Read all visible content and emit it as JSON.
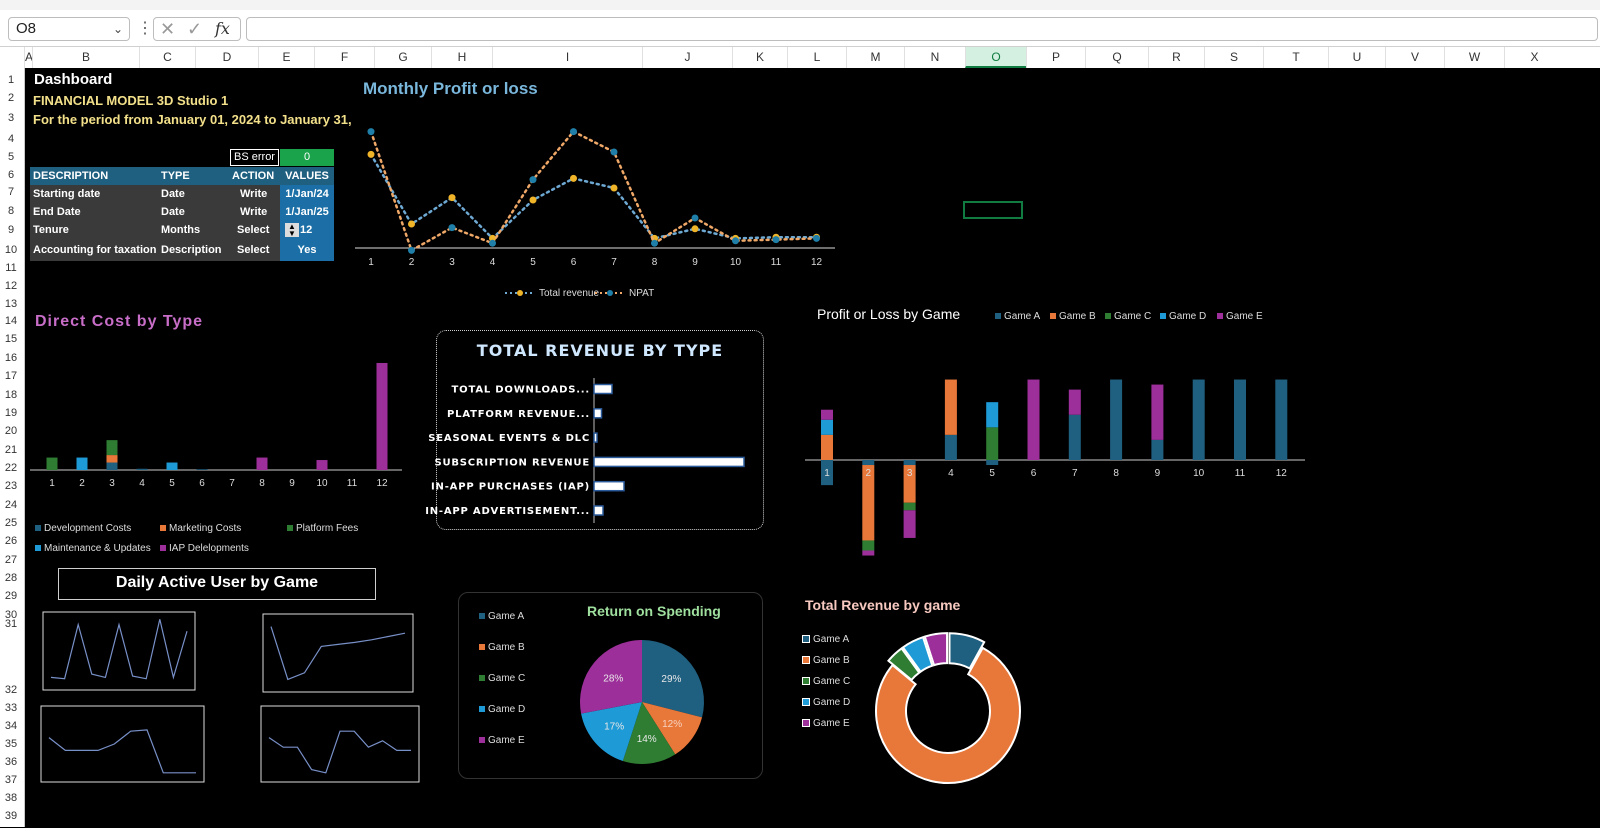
{
  "toolbar": {
    "name_box": "O8",
    "formula": ""
  },
  "columns": [
    "A",
    "B",
    "C",
    "D",
    "E",
    "F",
    "G",
    "H",
    "I",
    "J",
    "K",
    "L",
    "M",
    "N",
    "O",
    "P",
    "Q",
    "R",
    "S",
    "T",
    "U",
    "V",
    "W",
    "X"
  ],
  "selected_column": "O",
  "rows": [
    "1",
    "2",
    "3",
    "4",
    "5",
    "6",
    "7",
    "8",
    "9",
    "10",
    "11",
    "12",
    "13",
    "14",
    "15",
    "16",
    "17",
    "18",
    "19",
    "20",
    "21",
    "22",
    "23",
    "24",
    "25",
    "26",
    "27",
    "28",
    "29",
    "30",
    "31",
    "32",
    "33",
    "34",
    "35",
    "36",
    "37",
    "38",
    "39"
  ],
  "dashboard": {
    "title": "Dashboard",
    "subtitle": "FINANCIAL MODEL 3D Studio 1",
    "period": "For the period from January 01, 2024 to January 31,",
    "bs_error_label": "BS error",
    "bs_error_value": "0",
    "table": {
      "headers": [
        "DESCRIPTION",
        "TYPE",
        "ACTION",
        "VALUES"
      ],
      "rows": [
        [
          "Starting date",
          "Date",
          "Write",
          "1/Jan/24"
        ],
        [
          "End Date",
          "Date",
          "Write",
          "1/Jan/25"
        ],
        [
          "Tenure",
          "Months",
          "Select",
          "12"
        ],
        [
          "Accounting for taxation",
          "Description",
          "Select",
          "Yes"
        ]
      ]
    }
  },
  "colors": {
    "gameA": "#1f5f80",
    "gameB": "#e8773a",
    "gameC": "#2e7d32",
    "gameD": "#1e9ad6",
    "gameE": "#9c2f9a",
    "total_revenue": "#f0b429",
    "npat": "#1f7fa8"
  },
  "chart_data": [
    {
      "type": "line",
      "title": "Monthly Profit or loss",
      "x": [
        1,
        2,
        3,
        4,
        5,
        6,
        7,
        8,
        9,
        10,
        11,
        12
      ],
      "series": [
        {
          "name": "Total revenue",
          "values": [
            78,
            20,
            42,
            8,
            40,
            58,
            50,
            8,
            16,
            8,
            9,
            9
          ]
        },
        {
          "name": "NPAT",
          "values": [
            97,
            -2,
            17,
            4,
            57,
            97,
            80,
            4,
            25,
            6,
            7,
            8
          ]
        }
      ],
      "ylim": [
        -5,
        110
      ],
      "legend": "bottom"
    },
    {
      "type": "bar",
      "title": "Direct Cost by Type",
      "categories": [
        "1",
        "2",
        "3",
        "4",
        "5",
        "6",
        "7",
        "8",
        "9",
        "10",
        "11",
        "12"
      ],
      "series": [
        {
          "name": "Development Costs",
          "values": [
            0,
            0,
            3,
            0.5,
            0,
            0.3,
            0,
            0,
            0,
            0,
            0,
            0
          ]
        },
        {
          "name": "Marketing Costs",
          "values": [
            0,
            0,
            3,
            0,
            0,
            0,
            0,
            0,
            0,
            0,
            0,
            0
          ]
        },
        {
          "name": "Platform Fees",
          "values": [
            5,
            0,
            6,
            0,
            0,
            0,
            0,
            0,
            0,
            0,
            0,
            0
          ]
        },
        {
          "name": "Maintenance & Updates",
          "values": [
            0,
            5,
            0,
            0,
            3,
            0,
            0,
            0,
            0,
            0,
            0,
            0
          ]
        },
        {
          "name": "IAP Delelopments",
          "values": [
            0,
            0,
            0,
            0,
            0,
            0,
            0,
            5,
            0,
            4,
            0,
            43
          ]
        }
      ],
      "ylim": [
        0,
        45
      ],
      "legend": "bottom"
    },
    {
      "type": "bar",
      "title": "TOTAL REVENUE BY TYPE",
      "categories": [
        "TOTAL DOWNLOADS...",
        "PLATFORM REVENUE...",
        "SEASONAL EVENTS & DLC",
        "SUBSCRIPTION REVENUE",
        "IN-APP PURCHASES (IAP)",
        "IN-APP ADVERTISEMENT..."
      ],
      "values": [
        12,
        5,
        1,
        100,
        20,
        6
      ],
      "orientation": "horizontal",
      "ylim": [
        0,
        100
      ]
    },
    {
      "type": "bar",
      "title": "Profit or Loss by Game",
      "categories": [
        "1",
        "2",
        "3",
        "4",
        "5",
        "6",
        "7",
        "8",
        "9",
        "10",
        "11",
        "12"
      ],
      "series": [
        {
          "name": "Game A",
          "values": [
            -10,
            -2,
            -2,
            10,
            -2,
            0,
            18,
            32,
            8,
            32,
            32,
            32
          ]
        },
        {
          "name": "Game B",
          "values": [
            10,
            -30,
            -15,
            22,
            0,
            0,
            0,
            0,
            0,
            0,
            0,
            0
          ]
        },
        {
          "name": "Game C",
          "values": [
            0,
            -4,
            -3,
            0,
            13,
            0,
            0,
            0,
            0,
            0,
            0,
            0
          ]
        },
        {
          "name": "Game D",
          "values": [
            6,
            0,
            0,
            0,
            10,
            0,
            0,
            0,
            0,
            0,
            0,
            0
          ]
        },
        {
          "name": "Game E",
          "values": [
            4,
            -2,
            -11,
            0,
            0,
            32,
            10,
            0,
            22,
            0,
            0,
            0
          ]
        }
      ],
      "ylim": [
        -30,
        35
      ],
      "legend": "top"
    },
    {
      "type": "line",
      "title": "Daily Active User by Game",
      "series": [
        {
          "values": [
            10,
            8,
            90,
            15,
            10,
            90,
            12,
            8,
            98,
            10,
            80
          ]
        },
        {
          "values": [
            90,
            10,
            20,
            60,
            63,
            66,
            70,
            75,
            80
          ]
        },
        {
          "values": [
            60,
            40,
            40,
            40,
            50,
            70,
            72,
            5,
            5,
            5
          ]
        },
        {
          "values": [
            60,
            45,
            45,
            10,
            5,
            70,
            70,
            45,
            55,
            40,
            40
          ]
        }
      ]
    },
    {
      "type": "pie",
      "title": "Return on Spending",
      "categories": [
        "Game A",
        "Game B",
        "Game C",
        "Game D",
        "Game E"
      ],
      "values": [
        29,
        12,
        14,
        17,
        28
      ],
      "labels": [
        "29%",
        "12%",
        "14%",
        "17%",
        "28%"
      ],
      "legend": "left"
    },
    {
      "type": "pie",
      "title": "Total Revenue by game",
      "categories": [
        "Game A",
        "Game B",
        "Game C",
        "Game D",
        "Game E"
      ],
      "values": [
        8,
        78,
        4,
        5,
        5
      ],
      "donut": true,
      "legend": "left"
    }
  ]
}
